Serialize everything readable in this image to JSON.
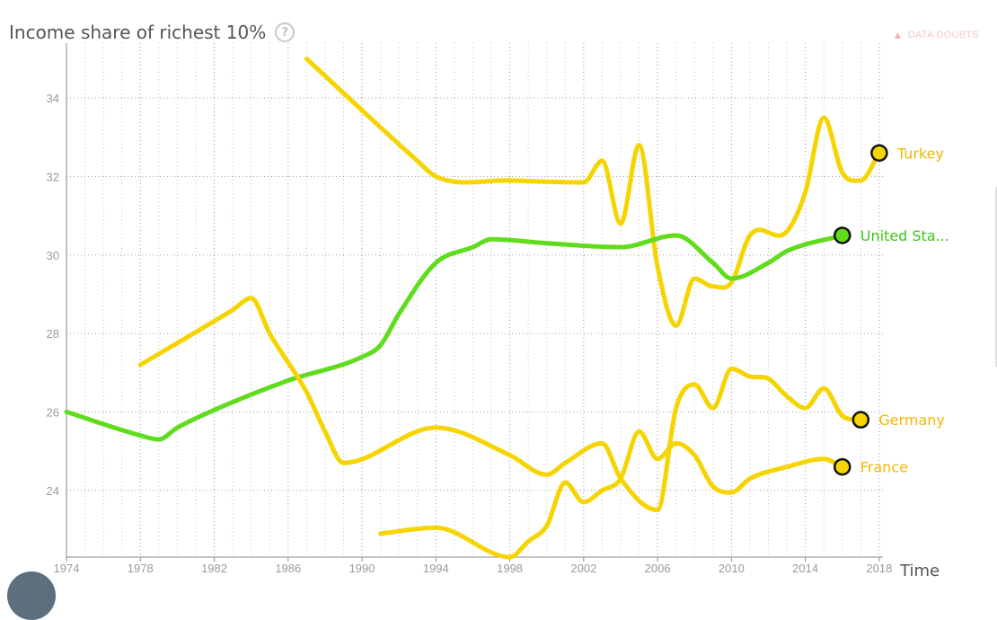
{
  "header": {
    "title": "Income share of richest 10%",
    "help_icon": "question-circle-icon",
    "data_doubts_label": "DATA DOUBTS",
    "data_doubts_icon": "warning-triangle-icon"
  },
  "chart_data": {
    "type": "line",
    "title": "Income share of richest 10%",
    "xlabel": "Time",
    "ylabel": "",
    "xlim": [
      1974,
      2018.2
    ],
    "ylim": [
      22.3,
      35.4
    ],
    "x_ticks": [
      1974,
      1978,
      1982,
      1986,
      1990,
      1994,
      1998,
      2002,
      2006,
      2010,
      2014,
      2018
    ],
    "y_ticks": [
      24,
      26,
      28,
      30,
      32,
      34
    ],
    "grid": true,
    "legend": "labels at line ends",
    "series": [
      {
        "name": "Turkey",
        "color": "#f5d400",
        "label_color": "#f2b600",
        "points": [
          [
            1987,
            35
          ],
          [
            1993,
            32.4
          ],
          [
            1994,
            32
          ],
          [
            1998,
            31.9
          ],
          [
            2002,
            31.85
          ],
          [
            2003,
            32.4
          ],
          [
            2004,
            30.8
          ],
          [
            2005,
            32.8
          ],
          [
            2006,
            29.7
          ],
          [
            2007,
            28.2
          ],
          [
            2008,
            29.4
          ],
          [
            2009,
            29.2
          ],
          [
            2010,
            29.3
          ],
          [
            2011,
            30.5
          ],
          [
            2013,
            30.6
          ],
          [
            2014,
            31.6
          ],
          [
            2015,
            33.5
          ],
          [
            2016,
            32.1
          ],
          [
            2017,
            31.9
          ],
          [
            2018,
            32.6
          ]
        ]
      },
      {
        "name": "United Sta...",
        "color": "#5fdc1c",
        "label_color": "#3cc61a",
        "points": [
          [
            1974,
            26
          ],
          [
            1978,
            25.4
          ],
          [
            1979,
            25.3
          ],
          [
            1980,
            25.6
          ],
          [
            1982,
            26.05
          ],
          [
            1986,
            26.8
          ],
          [
            1990,
            27.4
          ],
          [
            1991,
            27.7
          ],
          [
            1992,
            28.5
          ],
          [
            1994,
            29.8
          ],
          [
            1996,
            30.2
          ],
          [
            1997,
            30.4
          ],
          [
            2000,
            30.3
          ],
          [
            2004,
            30.2
          ],
          [
            2007,
            30.5
          ],
          [
            2009,
            29.8
          ],
          [
            2010,
            29.4
          ],
          [
            2012,
            29.8
          ],
          [
            2013,
            30.1
          ],
          [
            2016,
            30.5
          ]
        ]
      },
      {
        "name": "France",
        "color": "#f5d400",
        "label_color": "#f2b600",
        "points": [
          [
            1991,
            22.9
          ],
          [
            1994,
            23.05
          ],
          [
            1998,
            22.3
          ],
          [
            1999,
            22.7
          ],
          [
            2000,
            23.1
          ],
          [
            2001,
            24.2
          ],
          [
            2002,
            23.7
          ],
          [
            2003,
            24
          ],
          [
            2004,
            24.3
          ],
          [
            2005,
            25.5
          ],
          [
            2006,
            24.8
          ],
          [
            2007,
            25.2
          ],
          [
            2008,
            24.9
          ],
          [
            2009,
            24.1
          ],
          [
            2010,
            23.95
          ],
          [
            2011,
            24.3
          ],
          [
            2013,
            24.6
          ],
          [
            2015,
            24.8
          ],
          [
            2016,
            24.6
          ]
        ]
      },
      {
        "name": "Germany",
        "color": "#f5d400",
        "label_color": "#f2b600",
        "points": [
          [
            1978,
            27.2
          ],
          [
            1983,
            28.6
          ],
          [
            1984,
            28.9
          ],
          [
            1985,
            28
          ],
          [
            1987,
            26.5
          ],
          [
            1988,
            25.5
          ],
          [
            1989,
            24.7
          ],
          [
            1994,
            25.6
          ],
          [
            1998,
            24.9
          ],
          [
            2000,
            24.4
          ],
          [
            2001,
            24.7
          ],
          [
            2003,
            25.2
          ],
          [
            2004,
            24.3
          ],
          [
            2006,
            23.5
          ],
          [
            2007,
            26.1
          ],
          [
            2008,
            26.7
          ],
          [
            2009,
            26.1
          ],
          [
            2010,
            27.1
          ],
          [
            2011,
            26.9
          ],
          [
            2012,
            26.85
          ],
          [
            2013,
            26.4
          ],
          [
            2014,
            26.1
          ],
          [
            2015,
            26.6
          ],
          [
            2016,
            25.9
          ],
          [
            2017,
            25.8
          ]
        ]
      }
    ]
  }
}
